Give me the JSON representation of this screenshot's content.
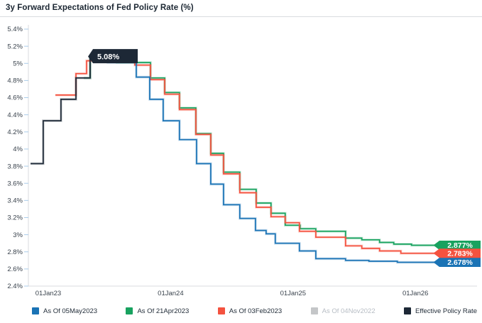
{
  "title": "3y Forward Expectations of Fed Policy Rate (%)",
  "colors": {
    "blue": "#1a73b5",
    "green": "#18a25f",
    "red": "#f4523f",
    "gray": "#c4c6c8",
    "dark_navy": "#1d2836",
    "axis_line": "#d8dbdf",
    "tick_mark": "#a9cbe9",
    "axis_text": "#3a434d",
    "label_text": "#ffffff"
  },
  "chart_data": {
    "type": "line",
    "step": true,
    "grid": false,
    "legend_position": "bottom",
    "title": "3y Forward Expectations of Fed Policy Rate (%)",
    "x_axis": {
      "unit": "years-from-01Jan23",
      "ticks": [
        {
          "label": "01Jan23",
          "t": 0
        },
        {
          "label": "01Jan24",
          "t": 1
        },
        {
          "label": "01Jan25",
          "t": 2
        },
        {
          "label": "01Jan26",
          "t": 3
        }
      ]
    },
    "y_axis": {
      "min": 2.4,
      "max": 5.4,
      "ticks": [
        {
          "label": "5.4%",
          "v": 5.4
        },
        {
          "label": "5.2%",
          "v": 5.2
        },
        {
          "label": "5%",
          "v": 5.0
        },
        {
          "label": "4.8%",
          "v": 4.8
        },
        {
          "label": "4.6%",
          "v": 4.6
        },
        {
          "label": "4.4%",
          "v": 4.4
        },
        {
          "label": "4.2%",
          "v": 4.2
        },
        {
          "label": "4%",
          "v": 4.0
        },
        {
          "label": "3.8%",
          "v": 3.8
        },
        {
          "label": "3.6%",
          "v": 3.6
        },
        {
          "label": "3.4%",
          "v": 3.4
        },
        {
          "label": "3.2%",
          "v": 3.2
        },
        {
          "label": "3%",
          "v": 3.0
        },
        {
          "label": "2.8%",
          "v": 2.8
        },
        {
          "label": "2.6%",
          "v": 2.6
        },
        {
          "label": "2.4%",
          "v": 2.4
        }
      ]
    },
    "series": [
      {
        "name": "As Of 05May2023",
        "color": "#1a73b5",
        "hidden": false,
        "end_label": "2.678%",
        "label_style": "end",
        "points": [
          [
            0.377,
            5.08
          ],
          [
            0.487,
            5.01
          ],
          [
            0.719,
            4.84
          ],
          [
            0.829,
            4.58
          ],
          [
            0.939,
            4.33
          ],
          [
            1.072,
            4.11
          ],
          [
            1.212,
            3.83
          ],
          [
            1.328,
            3.59
          ],
          [
            1.432,
            3.35
          ],
          [
            1.565,
            3.19
          ],
          [
            1.693,
            3.05
          ],
          [
            1.78,
            3.01
          ],
          [
            1.855,
            2.9
          ],
          [
            2.052,
            2.81
          ],
          [
            2.186,
            2.72
          ],
          [
            2.429,
            2.7
          ],
          [
            2.62,
            2.69
          ],
          [
            2.852,
            2.678
          ],
          [
            3.188,
            2.678
          ]
        ]
      },
      {
        "name": "As Of 21Apr2023",
        "color": "#18a25f",
        "hidden": false,
        "end_label": "2.877%",
        "label_style": "end",
        "points": [
          [
            0.29,
            4.83
          ],
          [
            0.342,
            5.08
          ],
          [
            0.562,
            5.01
          ],
          [
            0.835,
            4.83
          ],
          [
            0.951,
            4.66
          ],
          [
            1.072,
            4.48
          ],
          [
            1.206,
            4.18
          ],
          [
            1.328,
            3.95
          ],
          [
            1.432,
            3.73
          ],
          [
            1.565,
            3.53
          ],
          [
            1.699,
            3.37
          ],
          [
            1.82,
            3.25
          ],
          [
            1.936,
            3.11
          ],
          [
            2.058,
            3.07
          ],
          [
            2.186,
            3.04
          ],
          [
            2.429,
            2.96
          ],
          [
            2.562,
            2.94
          ],
          [
            2.707,
            2.91
          ],
          [
            2.823,
            2.89
          ],
          [
            2.968,
            2.877
          ],
          [
            3.188,
            2.877
          ]
        ]
      },
      {
        "name": "As Of 03Feb2023",
        "color": "#f4523f",
        "hidden": false,
        "end_label": "2.783%",
        "label_style": "end",
        "points": [
          [
            0.058,
            4.63
          ],
          [
            0.226,
            4.88
          ],
          [
            0.313,
            5.03
          ],
          [
            0.707,
            4.98
          ],
          [
            0.835,
            4.81
          ],
          [
            0.951,
            4.64
          ],
          [
            1.072,
            4.46
          ],
          [
            1.206,
            4.17
          ],
          [
            1.328,
            3.93
          ],
          [
            1.432,
            3.71
          ],
          [
            1.565,
            3.49
          ],
          [
            1.699,
            3.32
          ],
          [
            1.82,
            3.21
          ],
          [
            1.936,
            3.14
          ],
          [
            2.052,
            3.04
          ],
          [
            2.186,
            2.97
          ],
          [
            2.429,
            2.87
          ],
          [
            2.562,
            2.84
          ],
          [
            2.707,
            2.81
          ],
          [
            2.881,
            2.783
          ],
          [
            3.188,
            2.783
          ]
        ]
      },
      {
        "name": "As Of 04Nov2022",
        "color": "#c4c6c8",
        "hidden": true,
        "end_label": "",
        "label_style": "none",
        "points": []
      },
      {
        "name": "Effective Policy Rate",
        "color": "#1d2836",
        "hidden": false,
        "end_label": "5.08%",
        "label_style": "callout",
        "points": [
          [
            -0.145,
            3.83
          ],
          [
            -0.041,
            4.33
          ],
          [
            0.104,
            4.58
          ],
          [
            0.226,
            4.83
          ],
          [
            0.342,
            5.08
          ],
          [
            0.377,
            5.08
          ]
        ]
      }
    ]
  }
}
